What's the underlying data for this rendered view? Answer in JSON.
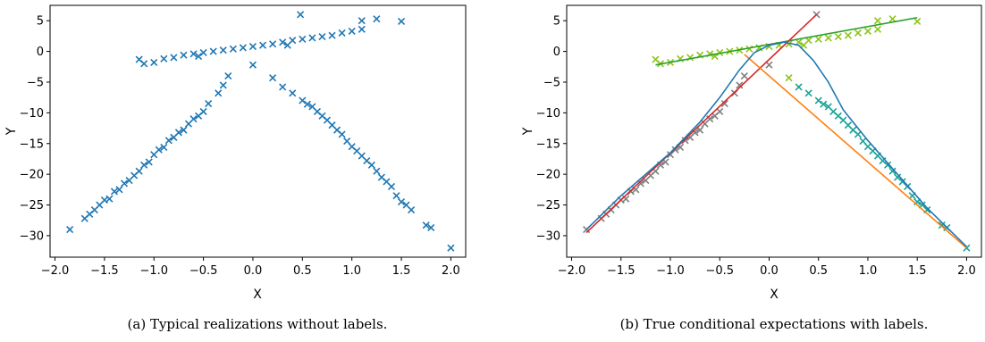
{
  "chart_data": [
    {
      "type": "scatter",
      "caption": "(a) Typical realizations without labels.",
      "xlabel": "X",
      "ylabel": "Y",
      "xlim": [
        -2.05,
        2.15
      ],
      "ylim": [
        -33.5,
        7.5
      ],
      "xticks": [
        -2.0,
        -1.5,
        -1.0,
        -0.5,
        0.0,
        0.5,
        1.0,
        1.5,
        2.0
      ],
      "xtick_labels": [
        "−2.0",
        "−1.5",
        "−1.0",
        "−0.5",
        "0.0",
        "0.5",
        "1.0",
        "1.5",
        "2.0"
      ],
      "yticks": [
        5,
        0,
        -5,
        -10,
        -15,
        -20,
        -25,
        -30
      ],
      "ytick_labels": [
        "5",
        "0",
        "−5",
        "−10",
        "−15",
        "−20",
        "−25",
        "−30"
      ],
      "grid": false,
      "marker": "x",
      "color": "#1f77b4",
      "series": [
        {
          "points": [
            [
              -1.85,
              -29.0
            ],
            [
              -1.7,
              -27.2
            ],
            [
              -1.6,
              -25.8
            ],
            [
              -1.5,
              -24.2
            ],
            [
              -1.45,
              -24.0
            ],
            [
              -1.4,
              -22.8
            ],
            [
              -1.3,
              -21.5
            ],
            [
              -1.25,
              -21.0
            ],
            [
              -1.2,
              -20.2
            ],
            [
              -1.1,
              -18.5
            ],
            [
              -1.05,
              -18.0
            ],
            [
              -1.0,
              -16.8
            ],
            [
              -0.95,
              -16.0
            ],
            [
              -0.9,
              -15.6
            ],
            [
              -0.85,
              -14.5
            ],
            [
              -0.8,
              -14.0
            ],
            [
              -0.7,
              -12.8
            ],
            [
              -0.6,
              -11.0
            ],
            [
              -0.5,
              -9.8
            ],
            [
              -0.45,
              -8.5
            ],
            [
              -0.35,
              -6.8
            ],
            [
              -0.25,
              -4.0
            ],
            [
              -1.35,
              -22.5
            ],
            [
              -1.15,
              -19.5
            ],
            [
              -0.75,
              -13.2
            ],
            [
              -0.55,
              -10.5
            ],
            [
              -1.55,
              -25.0
            ],
            [
              -0.65,
              -11.8
            ],
            [
              -1.65,
              -26.5
            ],
            [
              -0.3,
              -5.5
            ],
            [
              -1.15,
              -1.3
            ],
            [
              -1.1,
              -2.0
            ],
            [
              -1.0,
              -1.8
            ],
            [
              -0.9,
              -1.2
            ],
            [
              -0.8,
              -1.0
            ],
            [
              -0.7,
              -0.6
            ],
            [
              -0.6,
              -0.4
            ],
            [
              -0.5,
              -0.2
            ],
            [
              -0.4,
              0.0
            ],
            [
              -0.3,
              0.2
            ],
            [
              -0.2,
              0.4
            ],
            [
              -0.1,
              0.6
            ],
            [
              0.0,
              0.8
            ],
            [
              0.1,
              1.0
            ],
            [
              0.2,
              1.2
            ],
            [
              0.3,
              1.5
            ],
            [
              0.4,
              1.8
            ],
            [
              0.5,
              2.0
            ],
            [
              0.6,
              2.2
            ],
            [
              0.7,
              2.4
            ],
            [
              0.8,
              2.6
            ],
            [
              0.9,
              3.0
            ],
            [
              1.0,
              3.3
            ],
            [
              1.1,
              3.6
            ],
            [
              1.25,
              5.3
            ],
            [
              1.1,
              5.0
            ],
            [
              1.5,
              4.9
            ],
            [
              0.48,
              6.0
            ],
            [
              -0.55,
              -0.8
            ],
            [
              0.35,
              1.0
            ],
            [
              0.0,
              -2.2
            ],
            [
              0.2,
              -4.3
            ],
            [
              0.3,
              -5.8
            ],
            [
              0.4,
              -6.8
            ],
            [
              0.5,
              -8.0
            ],
            [
              0.6,
              -9.0
            ],
            [
              0.7,
              -10.5
            ],
            [
              0.8,
              -12.0
            ],
            [
              0.9,
              -13.5
            ],
            [
              1.0,
              -15.5
            ],
            [
              1.1,
              -17.0
            ],
            [
              1.2,
              -18.5
            ],
            [
              1.3,
              -20.5
            ],
            [
              1.4,
              -22.0
            ],
            [
              1.5,
              -24.5
            ],
            [
              1.6,
              -25.8
            ],
            [
              1.75,
              -28.3
            ],
            [
              1.8,
              -28.7
            ],
            [
              2.0,
              -32.0
            ],
            [
              0.55,
              -8.6
            ],
            [
              0.75,
              -11.2
            ],
            [
              0.95,
              -14.6
            ],
            [
              1.05,
              -16.2
            ],
            [
              1.25,
              -19.5
            ],
            [
              1.45,
              -23.5
            ],
            [
              0.65,
              -9.8
            ],
            [
              0.85,
              -12.8
            ],
            [
              1.15,
              -17.8
            ],
            [
              1.35,
              -21.2
            ],
            [
              1.55,
              -25.0
            ]
          ]
        }
      ]
    },
    {
      "type": "scatter",
      "caption": "(b) True conditional expectations with labels.",
      "xlabel": "X",
      "ylabel": "Y",
      "xlim": [
        -2.05,
        2.15
      ],
      "ylim": [
        -33.5,
        7.5
      ],
      "xticks": [
        -2.0,
        -1.5,
        -1.0,
        -0.5,
        0.0,
        0.5,
        1.0,
        1.5,
        2.0
      ],
      "xtick_labels": [
        "−2.0",
        "−1.5",
        "−1.0",
        "−0.5",
        "0.0",
        "0.5",
        "1.0",
        "1.5",
        "2.0"
      ],
      "yticks": [
        5,
        0,
        -5,
        -10,
        -15,
        -20,
        -25,
        -30
      ],
      "ytick_labels": [
        "5",
        "0",
        "−5",
        "−10",
        "−15",
        "−20",
        "−25",
        "−30"
      ],
      "grid": false,
      "marker": "x",
      "series": [
        {
          "color": "#7f7f7f",
          "points": [
            [
              -1.85,
              -29.0
            ],
            [
              -1.7,
              -27.2
            ],
            [
              -1.6,
              -25.8
            ],
            [
              -1.5,
              -24.2
            ],
            [
              -1.45,
              -24.0
            ],
            [
              -1.4,
              -22.8
            ],
            [
              -1.3,
              -21.5
            ],
            [
              -1.25,
              -21.0
            ],
            [
              -1.2,
              -20.2
            ],
            [
              -1.1,
              -18.5
            ],
            [
              -1.05,
              -18.0
            ],
            [
              -1.0,
              -16.8
            ],
            [
              -0.95,
              -16.0
            ],
            [
              -0.9,
              -15.6
            ],
            [
              -0.85,
              -14.5
            ],
            [
              -0.8,
              -14.0
            ],
            [
              -0.7,
              -12.8
            ],
            [
              -0.6,
              -11.0
            ],
            [
              -0.5,
              -9.8
            ],
            [
              -0.45,
              -8.5
            ],
            [
              -0.35,
              -6.8
            ],
            [
              -0.25,
              -4.0
            ],
            [
              -1.35,
              -22.5
            ],
            [
              -1.15,
              -19.5
            ],
            [
              -0.75,
              -13.2
            ],
            [
              -0.55,
              -10.5
            ],
            [
              -1.55,
              -25.0
            ],
            [
              -0.65,
              -11.8
            ],
            [
              -1.65,
              -26.5
            ],
            [
              -0.3,
              -5.5
            ],
            [
              0.48,
              6.0
            ],
            [
              0.0,
              -2.2
            ]
          ]
        },
        {
          "color": "#8cc41a",
          "points": [
            [
              -1.15,
              -1.3
            ],
            [
              -1.1,
              -2.0
            ],
            [
              -1.0,
              -1.8
            ],
            [
              -0.9,
              -1.2
            ],
            [
              -0.8,
              -1.0
            ],
            [
              -0.7,
              -0.6
            ],
            [
              -0.6,
              -0.4
            ],
            [
              -0.5,
              -0.2
            ],
            [
              -0.4,
              0.0
            ],
            [
              -0.3,
              0.2
            ],
            [
              -0.2,
              0.4
            ],
            [
              -0.1,
              0.6
            ],
            [
              0.0,
              0.8
            ],
            [
              0.1,
              1.0
            ],
            [
              0.2,
              1.2
            ],
            [
              0.3,
              1.5
            ],
            [
              0.4,
              1.8
            ],
            [
              0.5,
              2.0
            ],
            [
              0.6,
              2.2
            ],
            [
              0.7,
              2.4
            ],
            [
              0.8,
              2.6
            ],
            [
              0.9,
              3.0
            ],
            [
              1.0,
              3.3
            ],
            [
              1.1,
              3.6
            ],
            [
              1.25,
              5.3
            ],
            [
              1.1,
              5.0
            ],
            [
              1.5,
              4.9
            ],
            [
              -0.55,
              -0.8
            ],
            [
              0.35,
              1.0
            ],
            [
              0.2,
              -4.3
            ]
          ]
        },
        {
          "color": "#17a394",
          "points": [
            [
              0.3,
              -5.8
            ],
            [
              0.4,
              -6.8
            ],
            [
              0.5,
              -8.0
            ],
            [
              0.6,
              -9.0
            ],
            [
              0.7,
              -10.5
            ],
            [
              0.8,
              -12.0
            ],
            [
              0.9,
              -13.5
            ],
            [
              1.0,
              -15.5
            ],
            [
              1.1,
              -17.0
            ],
            [
              1.2,
              -18.5
            ],
            [
              1.3,
              -20.5
            ],
            [
              1.4,
              -22.0
            ],
            [
              1.5,
              -24.5
            ],
            [
              1.6,
              -25.8
            ],
            [
              1.75,
              -28.3
            ],
            [
              1.8,
              -28.7
            ],
            [
              2.0,
              -32.0
            ],
            [
              0.55,
              -8.6
            ],
            [
              0.75,
              -11.2
            ],
            [
              0.95,
              -14.6
            ],
            [
              1.05,
              -16.2
            ],
            [
              1.25,
              -19.5
            ],
            [
              1.45,
              -23.5
            ],
            [
              0.65,
              -9.8
            ],
            [
              0.85,
              -12.8
            ],
            [
              1.15,
              -17.8
            ],
            [
              1.35,
              -21.2
            ],
            [
              1.55,
              -25.0
            ]
          ]
        }
      ],
      "lines": [
        {
          "color": "#2ca02c",
          "points": [
            [
              -1.15,
              -2.2
            ],
            [
              1.5,
              5.5
            ]
          ]
        },
        {
          "color": "#d62728",
          "points": [
            [
              -1.85,
              -29.5
            ],
            [
              0.48,
              6.0
            ]
          ]
        },
        {
          "color": "#ff7f0e",
          "points": [
            [
              -0.25,
              -0.5
            ],
            [
              2.0,
              -32.0
            ]
          ]
        },
        {
          "color": "#1f77b4",
          "points": [
            [
              -1.85,
              -29.0
            ],
            [
              -1.5,
              -23.5
            ],
            [
              -1.0,
              -16.5
            ],
            [
              -0.7,
              -11.5
            ],
            [
              -0.5,
              -7.5
            ],
            [
              -0.3,
              -3.0
            ],
            [
              -0.15,
              -0.2
            ],
            [
              0.0,
              1.0
            ],
            [
              0.15,
              1.5
            ],
            [
              0.3,
              1.0
            ],
            [
              0.45,
              -1.5
            ],
            [
              0.6,
              -5.0
            ],
            [
              0.75,
              -9.5
            ],
            [
              1.0,
              -14.5
            ],
            [
              1.3,
              -20.0
            ],
            [
              1.6,
              -25.5
            ],
            [
              2.0,
              -31.8
            ]
          ]
        }
      ]
    }
  ]
}
